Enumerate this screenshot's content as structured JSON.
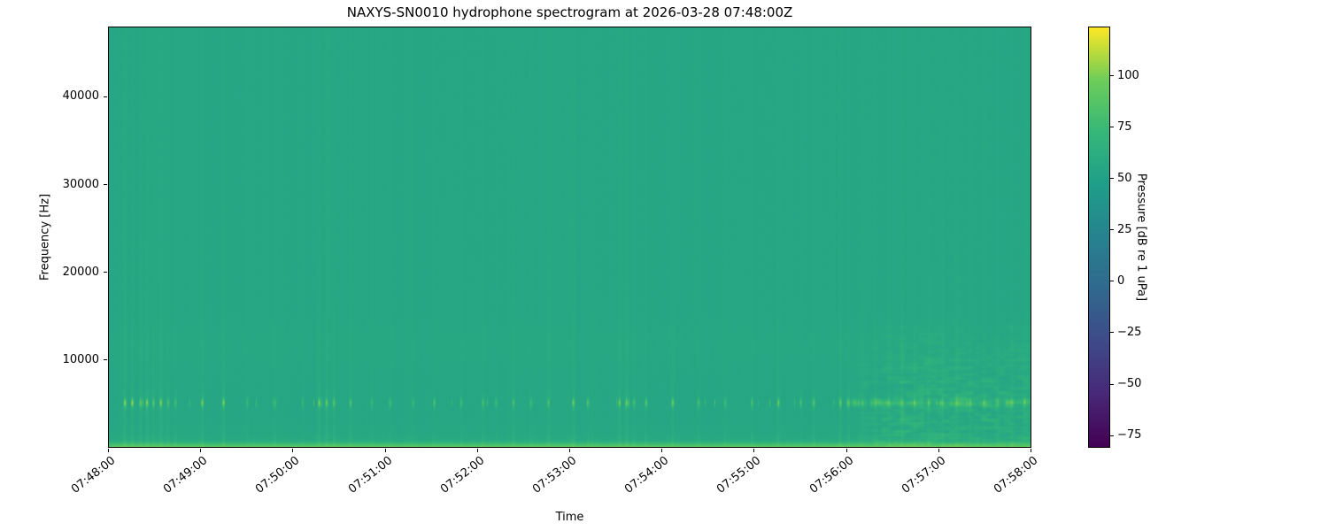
{
  "figure": {
    "title": "NAXYS-SN0010 hydrophone spectrogram at 2026-03-28 07:48:00Z",
    "xlabel": "Time",
    "ylabel": "Frequency [Hz]",
    "colorbar_label": "Pressure [dB re 1 uPa]"
  },
  "chart_data": {
    "type": "heatmap",
    "title": "NAXYS-SN0010 hydrophone spectrogram at 2026-03-28 07:48:00Z",
    "xlabel": "Time",
    "ylabel": "Frequency [Hz]",
    "x_tick_labels": [
      "07:48:00",
      "07:49:00",
      "07:50:00",
      "07:51:00",
      "07:52:00",
      "07:53:00",
      "07:54:00",
      "07:55:00",
      "07:56:00",
      "07:57:00",
      "07:58:00"
    ],
    "y_ticks": [
      10000,
      20000,
      30000,
      40000
    ],
    "y_tick_labels": [
      "10000",
      "20000",
      "30000",
      "40000"
    ],
    "ylim": [
      0,
      48000
    ],
    "grid": false,
    "colorbar": {
      "label": "Pressure [dB re 1 uPa]",
      "tick_values": [
        100,
        75,
        50,
        25,
        0,
        -25,
        -50,
        -75
      ],
      "tick_labels": [
        "100",
        "75",
        "50",
        "25",
        "0",
        "−25",
        "−50",
        "−75"
      ],
      "vmin": -81,
      "vmax": 124,
      "colormap": "viridis",
      "colormap_stops": [
        [
          0.0,
          68,
          1,
          84
        ],
        [
          0.125,
          72,
          40,
          120
        ],
        [
          0.25,
          62,
          74,
          137
        ],
        [
          0.375,
          49,
          104,
          142
        ],
        [
          0.5,
          38,
          130,
          142
        ],
        [
          0.625,
          31,
          158,
          137
        ],
        [
          0.75,
          53,
          183,
          121
        ],
        [
          0.875,
          109,
          205,
          89
        ],
        [
          1.0,
          253,
          231,
          37
        ]
      ]
    },
    "spectrogram": {
      "description": "Mostly uniform teal background ~56 dB; thin vertical transient striations; bright dashed click band near 5 kHz; faint haze band 9-14 kHz; bright broadband line at lowest frequencies; mottled elevated noise below ~14 kHz after 07:56",
      "background_db": 56,
      "haze_center_hz": 11500,
      "haze_sigma_hz": 2600,
      "haze_db": 1.3,
      "low_boost_below_hz": 3000,
      "low_boost_db": 3.5,
      "deep_boost_below_hz": 1300,
      "deep_boost_db": 4,
      "bottom_band_hz": 650,
      "bottom_band_db": 26,
      "click_band_center_hz": 5000,
      "click_band_sigma_hz": 420,
      "click_db": 44,
      "transient_db": 7,
      "noise_section_start": 0.8,
      "noise_db": 18,
      "seed": 7,
      "transients": [
        [
          0.017,
          0.95
        ],
        [
          0.025,
          1.0
        ],
        [
          0.034,
          0.75
        ],
        [
          0.041,
          0.9
        ],
        [
          0.048,
          0.65
        ],
        [
          0.056,
          0.9
        ],
        [
          0.064,
          0.55
        ],
        [
          0.072,
          0.5
        ],
        [
          0.101,
          0.85
        ],
        [
          0.124,
          0.9
        ],
        [
          0.15,
          0.35
        ],
        [
          0.18,
          0.45
        ],
        [
          0.21,
          0.35
        ],
        [
          0.228,
          0.9
        ],
        [
          0.236,
          0.75
        ],
        [
          0.244,
          0.65
        ],
        [
          0.262,
          0.55
        ],
        [
          0.285,
          0.35
        ],
        [
          0.305,
          0.45
        ],
        [
          0.33,
          0.35
        ],
        [
          0.353,
          0.45
        ],
        [
          0.382,
          0.45
        ],
        [
          0.406,
          0.55
        ],
        [
          0.42,
          0.45
        ],
        [
          0.439,
          0.55
        ],
        [
          0.458,
          0.45
        ],
        [
          0.477,
          0.55
        ],
        [
          0.504,
          0.8
        ],
        [
          0.52,
          0.45
        ],
        [
          0.554,
          0.7
        ],
        [
          0.562,
          0.8
        ],
        [
          0.57,
          0.55
        ],
        [
          0.583,
          0.65
        ],
        [
          0.612,
          0.75
        ],
        [
          0.64,
          0.55
        ],
        [
          0.669,
          0.45
        ],
        [
          0.698,
          0.55
        ],
        [
          0.727,
          0.65
        ],
        [
          0.751,
          0.55
        ],
        [
          0.765,
          0.65
        ],
        [
          0.794,
          0.75
        ],
        [
          0.803,
          0.65
        ],
        [
          0.818,
          0.55
        ],
        [
          0.832,
          0.65
        ],
        [
          0.847,
          0.55
        ],
        [
          0.861,
          0.65
        ],
        [
          0.875,
          0.55
        ],
        [
          0.89,
          0.65
        ],
        [
          0.905,
          0.55
        ],
        [
          0.92,
          0.65
        ],
        [
          0.935,
          0.55
        ],
        [
          0.95,
          0.65
        ],
        [
          0.965,
          0.55
        ],
        [
          0.98,
          0.55
        ],
        [
          0.994,
          0.6
        ]
      ]
    }
  }
}
